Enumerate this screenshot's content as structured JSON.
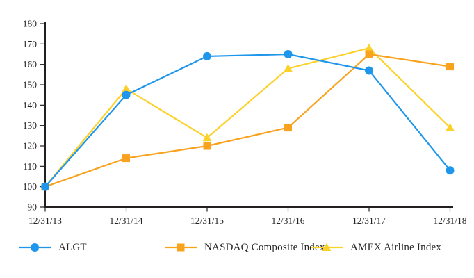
{
  "chart_data": {
    "type": "line",
    "title": "",
    "xlabel": "",
    "ylabel": "",
    "x": [
      "12/31/13",
      "12/31/14",
      "12/31/15",
      "12/31/16",
      "12/31/17",
      "12/31/18"
    ],
    "series": [
      {
        "name": "ALGT",
        "marker": "circle",
        "color": "#1E96EB",
        "values": [
          100,
          145,
          164,
          165,
          157,
          108
        ]
      },
      {
        "name": "NASDAQ Composite Index",
        "marker": "square",
        "color": "#F9A21D",
        "values": [
          100,
          114,
          120,
          129,
          165,
          159
        ]
      },
      {
        "name": "AMEX Airline Index",
        "marker": "triangle",
        "color": "#FCD12A",
        "values": [
          100,
          148,
          124,
          158,
          168,
          129
        ]
      }
    ],
    "ylim": [
      90,
      180
    ],
    "ytick_step": 10,
    "yticks": [
      "90",
      "100",
      "110",
      "120",
      "130",
      "140",
      "150",
      "160",
      "170",
      "180"
    ],
    "grid": false,
    "legend_position": "bottom",
    "axis_color": "#231F20",
    "text_color": "#262424"
  }
}
